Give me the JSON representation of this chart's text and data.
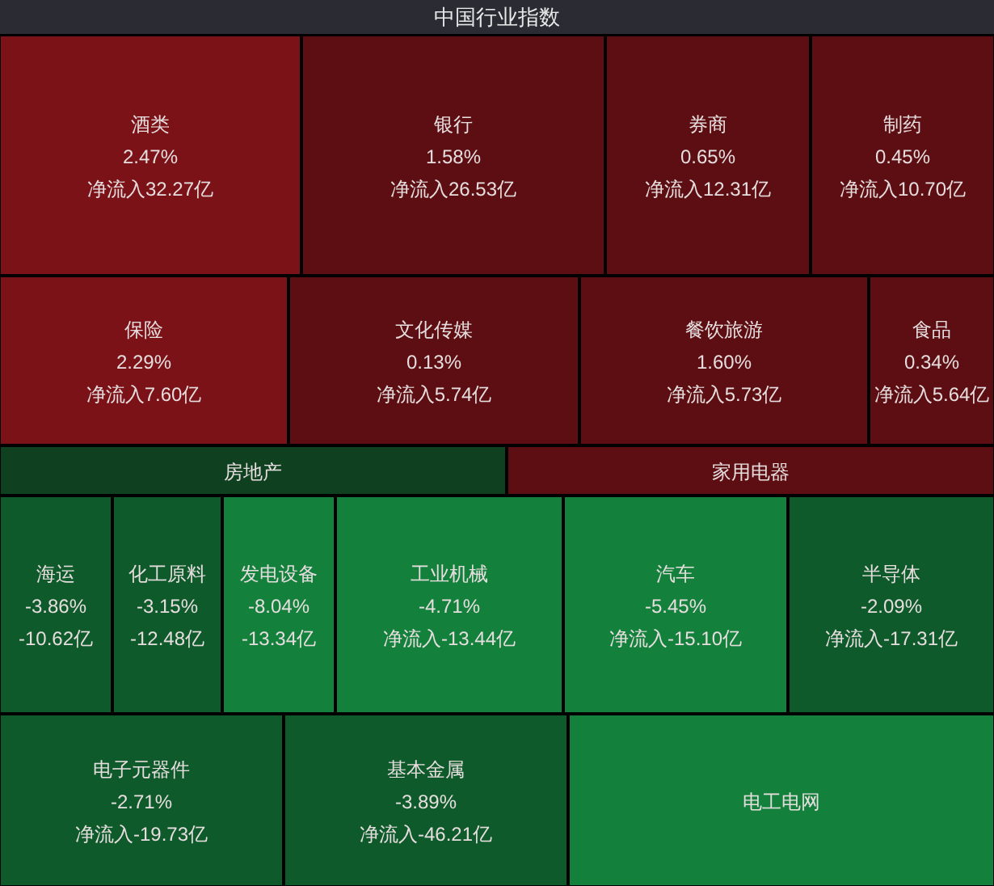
{
  "chart_data": {
    "type": "other",
    "title": "中国行业指数",
    "categories": [
      "酒类",
      "银行",
      "券商",
      "制药",
      "保险",
      "文化传媒",
      "餐饮旅游",
      "食品",
      "房地产",
      "家用电器",
      "海运",
      "化工原料",
      "发电设备",
      "工业机械",
      "汽车",
      "半导体",
      "电子元器件",
      "基本金属",
      "电工电网"
    ],
    "series": [
      {
        "colors": [
          "#7b1218",
          "#5c0e13",
          "#5c0e13",
          "#5c0e13",
          "#7b1218",
          "#5c0e13",
          "#5c0e13",
          "#5c0e13",
          "#0f4020",
          "#5c0e13",
          "#0e5a2b",
          "#0e5a2b",
          "#13803c",
          "#13803c",
          "#13803c",
          "#0e5a2b",
          "#0e5a2b",
          "#0e5a2b",
          "#13803c"
        ],
        "values": [
          2.47,
          1.58,
          0.65,
          0.45,
          2.29,
          0.13,
          1.6,
          0.34,
          null,
          null,
          -3.86,
          -3.15,
          -8.04,
          -4.71,
          -5.45,
          -2.09,
          -2.71,
          -3.89,
          null
        ],
        "value_labels": [
          "2.47%",
          "1.58%",
          "0.65%",
          "0.45%",
          "2.29%",
          "0.13%",
          "1.60%",
          "0.34%",
          null,
          null,
          "-3.86%",
          "-3.15%",
          "-8.04%",
          "-4.71%",
          "-5.45%",
          "-2.09%",
          "-2.71%",
          "-3.89%",
          null
        ]
      },
      {
        "values": [
          32.27,
          26.53,
          12.31,
          10.7,
          7.6,
          5.74,
          5.73,
          5.64,
          null,
          null,
          -10.62,
          -12.48,
          -13.34,
          -13.44,
          -15.1,
          -17.31,
          -19.73,
          -46.21,
          null
        ],
        "value_labels": [
          "净流入32.27亿",
          "净流入26.53亿",
          "净流入12.31亿",
          "净流入10.70亿",
          "净流入7.60亿",
          "净流入5.74亿",
          "净流入5.73亿",
          "净流入5.64亿",
          null,
          null,
          "-10.62亿",
          "-12.48亿",
          "-13.34亿",
          "净流入-13.44亿",
          "净流入-15.10亿",
          "净流入-17.31亿",
          "净流入-19.73亿",
          "净流入-46.21亿",
          null
        ]
      }
    ]
  }
}
